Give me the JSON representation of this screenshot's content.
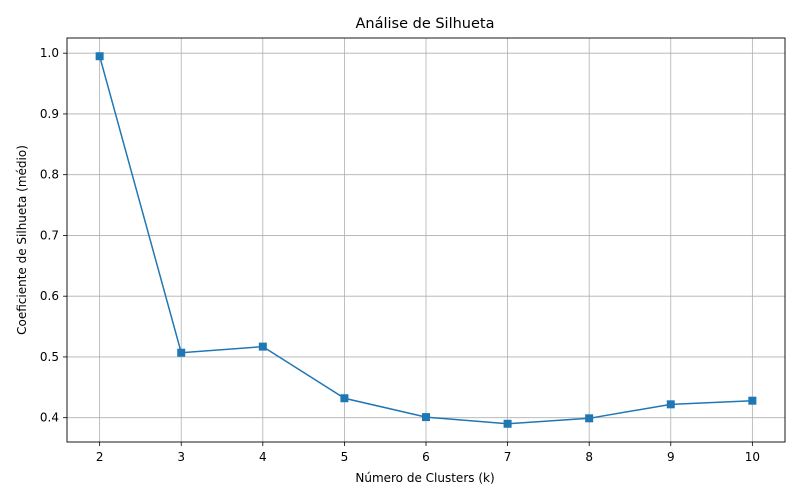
{
  "chart_data": {
    "type": "line",
    "title": "Análise de Silhueta",
    "xlabel": "Número de Clusters (k)",
    "ylabel": "Coeficiente de Silhueta (médio)",
    "x": [
      2,
      3,
      4,
      5,
      6,
      7,
      8,
      9,
      10
    ],
    "series": [
      {
        "values": [
          0.995,
          0.507,
          0.517,
          0.432,
          0.401,
          0.39,
          0.399,
          0.422,
          0.428
        ],
        "color": "#1f77b4",
        "marker": "square"
      }
    ],
    "xticks": [
      "2",
      "3",
      "4",
      "5",
      "6",
      "7",
      "8",
      "9",
      "10"
    ],
    "yticks": [
      "0.4",
      "0.5",
      "0.6",
      "0.7",
      "0.8",
      "0.9",
      "1.0"
    ],
    "xlim": [
      1.6,
      10.4
    ],
    "ylim": [
      0.36,
      1.025
    ],
    "grid": true,
    "legend": "none"
  }
}
